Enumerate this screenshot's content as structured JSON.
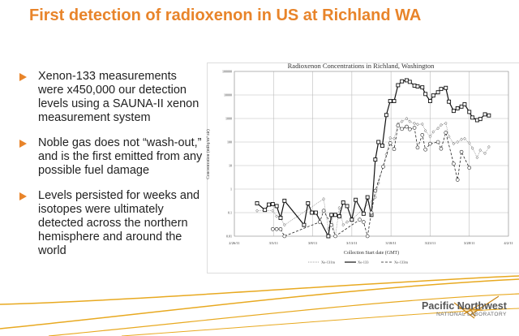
{
  "slide": {
    "title": "First detection of radioxenon in US at Richland WA",
    "bullets": [
      "Xenon-133 measurements were x450,000 our detection levels using a SAUNA-II xenon measurement system",
      "Noble gas does not “wash-out,” and is the first emitted from any possible fuel damage",
      "Levels persisted for weeks and isotopes were ultimately detected across the northern hemisphere and around the world"
    ],
    "logo": {
      "line1": "Pacific Northwest",
      "line2": "NATIONAL LABORATORY"
    },
    "colors": {
      "accent": "#E8842A",
      "gold": "#E8A920"
    }
  },
  "chart_data": {
    "type": "line",
    "title": "Radioxenon Concentrations in Richland, Washington",
    "xlabel": "Collection Start date (GMT)",
    "ylabel": "Concentration (mBq/m³ air)",
    "x_units": "days after 2/26/11",
    "xlim": [
      0,
      35
    ],
    "x_ticks": [
      0,
      5,
      10,
      15,
      20,
      25,
      30,
      35
    ],
    "x_tick_labels": [
      "2/26/11",
      "3/3/11",
      "3/8/11",
      "3/13/11",
      "3/18/11",
      "3/23/11",
      "3/28/11",
      "4/2/11"
    ],
    "yscale": "log",
    "ylim": [
      0.01,
      100000
    ],
    "y_ticks": [
      0.01,
      0.1,
      1,
      10,
      100,
      1000,
      10000,
      100000
    ],
    "y_tick_labels": [
      "0.01",
      "0.1",
      "1",
      "10",
      "100",
      "1000",
      "10000",
      "100000"
    ],
    "grid": true,
    "legend": "bottom",
    "series": [
      {
        "name": "Xe-131m",
        "style": "dotted-diamond",
        "points": [
          [
            2.9,
            0.12
          ],
          [
            4.9,
            0.12
          ],
          [
            5.4,
            0.07
          ],
          [
            5.9,
            0.06
          ],
          [
            6.4,
            0.03
          ],
          [
            11.4,
            0.38
          ],
          [
            12,
            0.02
          ],
          [
            12.4,
            0.06
          ],
          [
            12.9,
            0.01
          ],
          [
            13.4,
            0.16
          ],
          [
            13.9,
            0.03
          ],
          [
            14.4,
            0.04
          ],
          [
            15,
            0.05
          ],
          [
            18,
            0.45
          ],
          [
            18.4,
            1.8
          ],
          [
            19.4,
            30
          ],
          [
            19.9,
            150
          ],
          [
            20.4,
            140
          ],
          [
            20.9,
            600
          ],
          [
            21.4,
            750
          ],
          [
            22,
            1000
          ],
          [
            22.4,
            750
          ],
          [
            23,
            620
          ],
          [
            23.4,
            560
          ],
          [
            24,
            580
          ],
          [
            24.4,
            300
          ],
          [
            25,
            170
          ],
          [
            25.4,
            270
          ],
          [
            26,
            380
          ],
          [
            26.4,
            530
          ],
          [
            27,
            630
          ],
          [
            27.4,
            170
          ],
          [
            28,
            85
          ],
          [
            28.5,
            100
          ],
          [
            29,
            130
          ],
          [
            29.4,
            140
          ],
          [
            30,
            90
          ],
          [
            30.4,
            55
          ],
          [
            31,
            22
          ],
          [
            31.4,
            45
          ],
          [
            32,
            33
          ],
          [
            32.5,
            62
          ]
        ]
      },
      {
        "name": "Xe-133",
        "style": "solid-square",
        "points": [
          [
            2.9,
            0.25
          ],
          [
            3.9,
            0.13
          ],
          [
            4.4,
            0.22
          ],
          [
            4.9,
            0.23
          ],
          [
            5.4,
            0.19
          ],
          [
            5.9,
            0.06
          ],
          [
            6.4,
            0.32
          ],
          [
            8.9,
            0.03
          ],
          [
            9.4,
            0.25
          ],
          [
            9.9,
            0.1
          ],
          [
            10.4,
            0.1
          ],
          [
            12,
            0.01
          ],
          [
            12.4,
            0.08
          ],
          [
            12.9,
            0.08
          ],
          [
            13.4,
            0.07
          ],
          [
            13.9,
            0.27
          ],
          [
            14.4,
            0.19
          ],
          [
            15,
            0.05
          ],
          [
            15.5,
            0.35
          ],
          [
            16.5,
            0.09
          ],
          [
            17,
            0.45
          ],
          [
            17.5,
            0.08
          ],
          [
            18,
            18
          ],
          [
            18.4,
            100
          ],
          [
            18.9,
            70
          ],
          [
            19.4,
            1400
          ],
          [
            19.9,
            5500
          ],
          [
            20.4,
            5500
          ],
          [
            20.9,
            26000
          ],
          [
            21.4,
            38000
          ],
          [
            22,
            42000
          ],
          [
            22.4,
            36000
          ],
          [
            23,
            25000
          ],
          [
            23.4,
            23000
          ],
          [
            24,
            21000
          ],
          [
            24.4,
            11000
          ],
          [
            25,
            5500
          ],
          [
            25.4,
            9500
          ],
          [
            26,
            13000
          ],
          [
            26.4,
            18000
          ],
          [
            27,
            20000
          ],
          [
            27.4,
            5200
          ],
          [
            28,
            2100
          ],
          [
            28.5,
            2700
          ],
          [
            29,
            3200
          ],
          [
            29.4,
            4000
          ],
          [
            30,
            1900
          ],
          [
            30.4,
            1100
          ],
          [
            31,
            850
          ],
          [
            31.4,
            950
          ],
          [
            32,
            1500
          ],
          [
            32.5,
            1350
          ]
        ]
      },
      {
        "name": "Xe-133m",
        "style": "dashed-circle",
        "points": [
          [
            4.9,
            0.02
          ],
          [
            5.4,
            0.02
          ],
          [
            5.9,
            0.02
          ],
          [
            6.4,
            0.01
          ],
          [
            10.9,
            0.04
          ],
          [
            11.4,
            0.12
          ],
          [
            12.4,
            0.03
          ],
          [
            12.9,
            0.01
          ],
          [
            16,
            0.05
          ],
          [
            16.5,
            0.04
          ],
          [
            17,
            0.01
          ],
          [
            17.5,
            0.1
          ],
          [
            18,
            0.85
          ],
          [
            19,
            9
          ],
          [
            19.9,
            90
          ],
          [
            20.4,
            50
          ],
          [
            20.9,
            500
          ],
          [
            21.4,
            360
          ],
          [
            22,
            450
          ],
          [
            22.4,
            350
          ],
          [
            23,
            400
          ],
          [
            23.4,
            58
          ],
          [
            24,
            200
          ],
          [
            24.4,
            48
          ],
          [
            25,
            85
          ],
          [
            26,
            100
          ],
          [
            26.4,
            52
          ],
          [
            27,
            250
          ],
          [
            28,
            12
          ],
          [
            28.5,
            2.5
          ],
          [
            29,
            38
          ],
          [
            30,
            8
          ]
        ]
      }
    ]
  }
}
